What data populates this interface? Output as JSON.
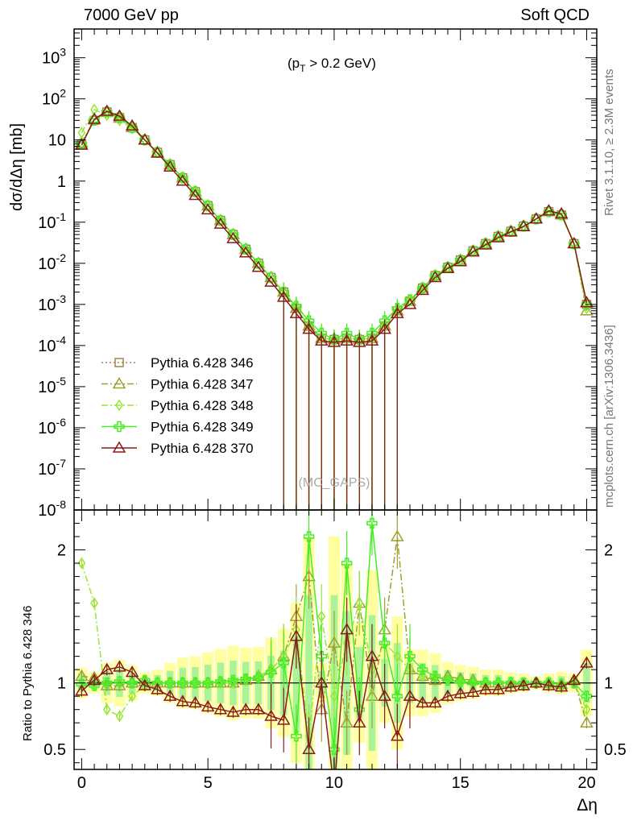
{
  "header": {
    "left_title": "7000 GeV pp",
    "right_title": "Soft QCD"
  },
  "side_labels": {
    "rivet": "Rivet 3.1.10, ≥ 2.3M events",
    "mcplots": "mcplots.cern.ch [arXiv:1306.3436]"
  },
  "chart_data": [
    {
      "type": "line",
      "panel": "main",
      "annotation": "(p_T > 0.2 GeV)",
      "watermark": "(MC_GAPS)",
      "xlabel": "Δη",
      "ylabel": "dσ/dΔη [mb]",
      "xlim": [
        -0.3,
        20.4
      ],
      "ylim": [
        1e-08,
        5000
      ],
      "yscale": "log",
      "x_ticks": [
        "0",
        "5",
        "10",
        "15",
        "20"
      ],
      "y_ticks": [
        "10^3",
        "10^2",
        "10",
        "1",
        "10^-1",
        "10^-2",
        "10^-3",
        "10^-4",
        "10^-5",
        "10^-6",
        "10^-7",
        "10^-8"
      ],
      "legend_position": "lower-left",
      "x": [
        0,
        0.5,
        1,
        1.5,
        2,
        2.5,
        3,
        3.5,
        4,
        4.5,
        5,
        5.5,
        6,
        6.5,
        7,
        7.5,
        8,
        8.5,
        9,
        9.5,
        10,
        10.5,
        11,
        11.5,
        12,
        12.5,
        13,
        13.5,
        14,
        14.5,
        15,
        15.5,
        16,
        16.5,
        17,
        17.5,
        18,
        18.5,
        19,
        19.5,
        20
      ],
      "series": [
        {
          "name": "Pythia 6.428 346",
          "color": "#a8824a",
          "marker": "open-square",
          "line": "dotted",
          "values": [
            8,
            30,
            48,
            35,
            20,
            10,
            5,
            2.5,
            1.2,
            0.55,
            0.25,
            0.11,
            0.05,
            0.022,
            0.01,
            0.0045,
            0.002,
            0.0008,
            0.0003,
            0.00015,
            0.00014,
            0.00015,
            0.00014,
            0.00015,
            0.0003,
            0.0007,
            0.0012,
            0.0025,
            0.005,
            0.008,
            0.012,
            0.02,
            0.03,
            0.045,
            0.06,
            0.08,
            0.12,
            0.18,
            0.15,
            0.03,
            0.001
          ]
        },
        {
          "name": "Pythia 6.428 347",
          "color": "#a0a030",
          "marker": "open-triangle",
          "line": "dash-dot",
          "values": [
            8.5,
            31,
            47,
            34,
            20,
            10,
            5,
            2.5,
            1.2,
            0.55,
            0.25,
            0.11,
            0.05,
            0.022,
            0.01,
            0.0045,
            0.002,
            0.0008,
            0.0003,
            0.00015,
            0.00014,
            0.00015,
            0.00014,
            0.00015,
            0.0003,
            0.0007,
            0.0012,
            0.0025,
            0.005,
            0.008,
            0.012,
            0.02,
            0.03,
            0.045,
            0.06,
            0.08,
            0.12,
            0.18,
            0.15,
            0.03,
            0.0007
          ]
        },
        {
          "name": "Pythia 6.428 348",
          "color": "#99e633",
          "marker": "open-diamond",
          "line": "dash-dot",
          "values": [
            15,
            55,
            40,
            30,
            19,
            10,
            5,
            2.5,
            1.2,
            0.55,
            0.25,
            0.11,
            0.05,
            0.022,
            0.01,
            0.0045,
            0.002,
            0.0008,
            0.0003,
            0.00015,
            0.00014,
            0.00015,
            0.00014,
            0.00015,
            0.0003,
            0.0007,
            0.0012,
            0.0025,
            0.005,
            0.008,
            0.012,
            0.02,
            0.03,
            0.045,
            0.06,
            0.08,
            0.12,
            0.18,
            0.15,
            0.03,
            0.0008
          ]
        },
        {
          "name": "Pythia 6.428 349",
          "color": "#44ee22",
          "marker": "open-cross",
          "line": "solid",
          "values": [
            8,
            30,
            48,
            35,
            20,
            10,
            5,
            2.5,
            1.2,
            0.55,
            0.25,
            0.11,
            0.05,
            0.022,
            0.01,
            0.0045,
            0.002,
            0.0009,
            0.0004,
            0.0002,
            0.00014,
            0.0002,
            0.00014,
            0.0002,
            0.0004,
            0.0008,
            0.0013,
            0.0025,
            0.005,
            0.008,
            0.012,
            0.02,
            0.03,
            0.045,
            0.06,
            0.08,
            0.12,
            0.18,
            0.15,
            0.03,
            0.001
          ]
        },
        {
          "name": "Pythia 6.428 370",
          "color": "#8b1a1a",
          "marker": "open-triangle",
          "line": "solid",
          "values": [
            7.5,
            32,
            50,
            38,
            22,
            10,
            4.8,
            2.2,
            1,
            0.45,
            0.2,
            0.09,
            0.04,
            0.018,
            0.008,
            0.0035,
            0.0015,
            0.0006,
            0.00025,
            0.00013,
            0.00012,
            0.00013,
            0.00012,
            0.00013,
            0.00025,
            0.0006,
            0.001,
            0.0022,
            0.0045,
            0.0075,
            0.011,
            0.019,
            0.028,
            0.042,
            0.058,
            0.078,
            0.12,
            0.19,
            0.16,
            0.03,
            0.0011
          ]
        }
      ]
    },
    {
      "type": "line",
      "panel": "ratio",
      "xlabel": "Δη",
      "ylabel": "Ratio to Pythia 6.428 346",
      "xlim": [
        -0.3,
        20.4
      ],
      "ylim": [
        0.35,
        2.3
      ],
      "y_ticks": [
        "0.5",
        "1",
        "2"
      ],
      "x": [
        0,
        0.5,
        1,
        1.5,
        2,
        2.5,
        3,
        3.5,
        4,
        4.5,
        5,
        5.5,
        6,
        6.5,
        7,
        7.5,
        8,
        8.5,
        9,
        9.5,
        10,
        10.5,
        11,
        11.5,
        12,
        12.5,
        13,
        13.5,
        14,
        14.5,
        15,
        15.5,
        16,
        16.5,
        17,
        17.5,
        18,
        18.5,
        19,
        19.5,
        20
      ],
      "series": [
        {
          "name": "Pythia 6.428 346",
          "color": "#a8824a",
          "values": [
            1,
            1,
            1,
            1,
            1,
            1,
            1,
            1,
            1,
            1,
            1,
            1,
            1,
            1,
            1,
            1,
            1,
            1,
            1,
            1,
            1,
            1,
            1,
            1,
            1,
            1,
            1,
            1,
            1,
            1,
            1,
            1,
            1,
            1,
            1,
            1,
            1,
            1,
            1,
            1,
            1
          ]
        },
        {
          "name": "Pythia 6.428 347",
          "color": "#a0a030",
          "values": [
            1.05,
            1.04,
            0.98,
            0.98,
            1,
            1.01,
            1,
            1,
            1,
            1,
            1,
            1,
            1,
            1.02,
            1.05,
            1.1,
            1.2,
            1.5,
            1.8,
            0.8,
            1.3,
            0.7,
            1.6,
            0.9,
            1.4,
            2.1,
            1.1,
            1.05,
            1.02,
            1.05,
            1.03,
            1.02,
            1,
            1,
            1,
            0.98,
            1,
            1,
            0.99,
            1.02,
            0.7
          ]
        },
        {
          "name": "Pythia 6.428 348",
          "color": "#99e633",
          "values": [
            1.9,
            1.6,
            0.8,
            0.75,
            0.9,
            0.98,
            1,
            1,
            1,
            1,
            1,
            1,
            1,
            1.02,
            1.05,
            1.1,
            1.2,
            1.4,
            0.6,
            1.5,
            0.9,
            1.3,
            1.6,
            1.1,
            1.3,
            1.2,
            1.1,
            1.05,
            1.05,
            1.03,
            1,
            1.01,
            1,
            1,
            1,
            0.99,
            1,
            1.01,
            0.98,
            1,
            0.8
          ]
        },
        {
          "name": "Pythia 6.428 349",
          "color": "#44ee22",
          "values": [
            0.99,
            0.98,
            1,
            1.01,
            1,
            1.02,
            1,
            1,
            1,
            1,
            1,
            1.01,
            1.02,
            1.03,
            1.04,
            1.08,
            1.15,
            0.6,
            2.1,
            1.2,
            0.5,
            1.9,
            0.8,
            2.2,
            1.3,
            0.9,
            1.2,
            1.1,
            1.05,
            1.02,
            1.01,
            1,
            1,
            1,
            1,
            1,
            1,
            1,
            0.99,
            1,
            0.9
          ]
        },
        {
          "name": "Pythia 6.428 370",
          "color": "#8b1a1a",
          "values": [
            0.94,
            1.02,
            1.1,
            1.12,
            1.08,
            0.98,
            0.95,
            0.9,
            0.86,
            0.85,
            0.82,
            0.8,
            0.78,
            0.8,
            0.8,
            0.75,
            0.72,
            1.35,
            0.5,
            1.0,
            0.2,
            1.4,
            0.7,
            1.2,
            0.9,
            0.6,
            0.9,
            0.85,
            0.85,
            0.9,
            0.92,
            0.93,
            0.95,
            0.95,
            0.97,
            0.98,
            1,
            0.98,
            0.97,
            1.02,
            1.15
          ]
        }
      ]
    }
  ]
}
